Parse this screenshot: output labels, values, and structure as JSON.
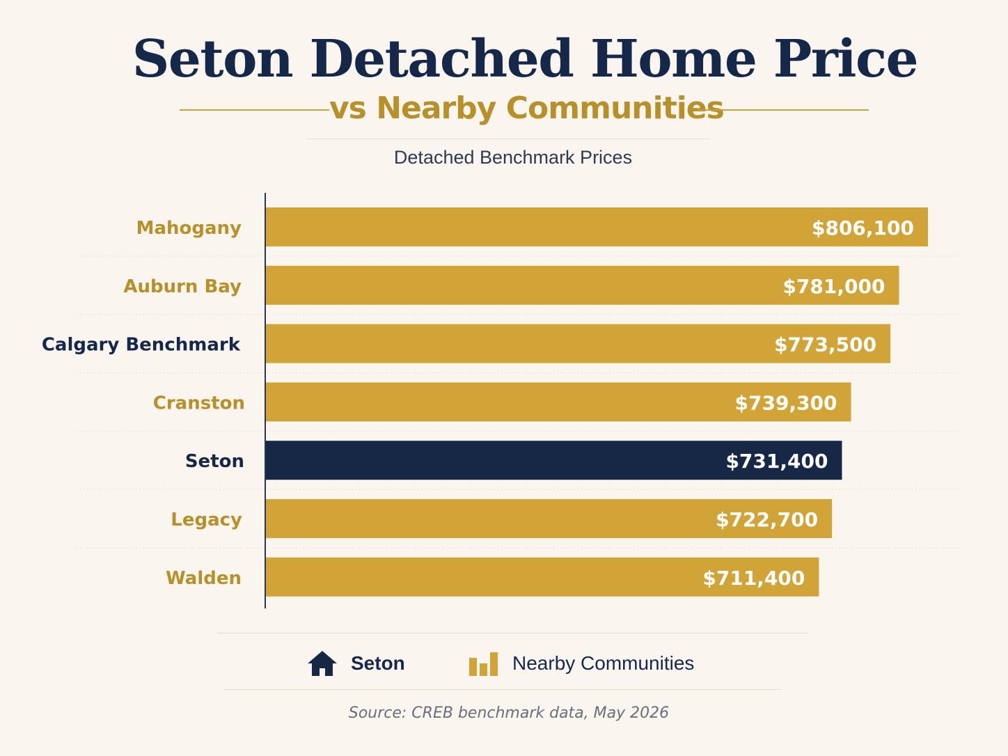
{
  "title": "Seton Detached Home Price",
  "subtitle": "vs Nearby Communities",
  "chart_data": {
    "type": "bar",
    "orientation": "horizontal",
    "title": "Detached Benchmark Prices",
    "categories": [
      "Mahogany",
      "Auburn Bay",
      "Calgary Benchmark",
      "Cranston",
      "Seton",
      "Legacy",
      "Walden"
    ],
    "values": [
      806100,
      781000,
      773500,
      739300,
      731400,
      722700,
      711400
    ],
    "value_labels": [
      "$806,100",
      "$781,000",
      "$773,500",
      "$739,300",
      "$731,400",
      "$722,700",
      "$711,400"
    ],
    "highlight": "Seton",
    "grid": false
  },
  "legend": {
    "seton_label": "Seton",
    "seton_icon": "house-icon",
    "nearby_label": "Nearby Communities",
    "nearby_icon": "bar-chart-icon"
  },
  "source": "Source: CREB benchmark data, May 2026",
  "colors": {
    "gold": "#d1a437",
    "gold_text": "#b8902a",
    "navy": "#172846",
    "benchmark_text": "#16284a",
    "background": "#faf6ef"
  }
}
